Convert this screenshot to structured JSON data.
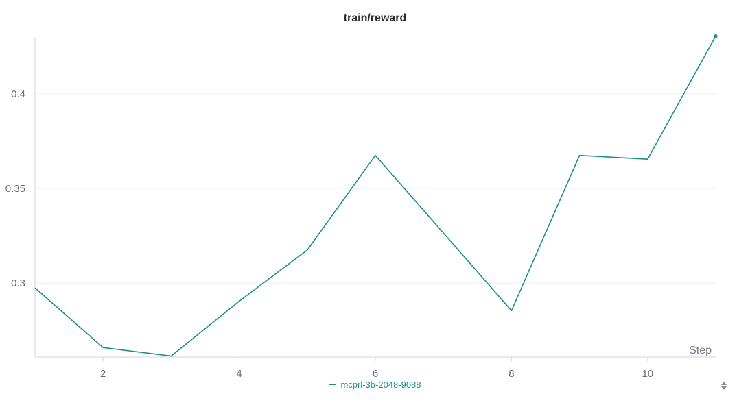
{
  "chart_data": {
    "type": "line",
    "title": "train/reward",
    "xlabel": "Step",
    "ylabel": "",
    "xlim": [
      1,
      11
    ],
    "ylim": [
      0.261,
      0.43
    ],
    "x_ticks": [
      2,
      4,
      6,
      8,
      10
    ],
    "y_ticks": [
      0.3,
      0.35,
      0.4
    ],
    "grid": true,
    "legend_position": "bottom",
    "series": [
      {
        "name": "mcprl-3b-2048-9088",
        "color": "#1a8f86",
        "x": [
          1,
          2,
          3,
          4,
          5,
          6,
          7,
          8,
          9,
          10,
          11
        ],
        "y": [
          0.2975,
          0.266,
          0.2615,
          0.2905,
          0.3175,
          0.3675,
          0.3265,
          0.2855,
          0.3675,
          0.3655,
          0.4305
        ]
      }
    ]
  },
  "controls": {
    "sort_icon": "sort-updown-icon"
  }
}
